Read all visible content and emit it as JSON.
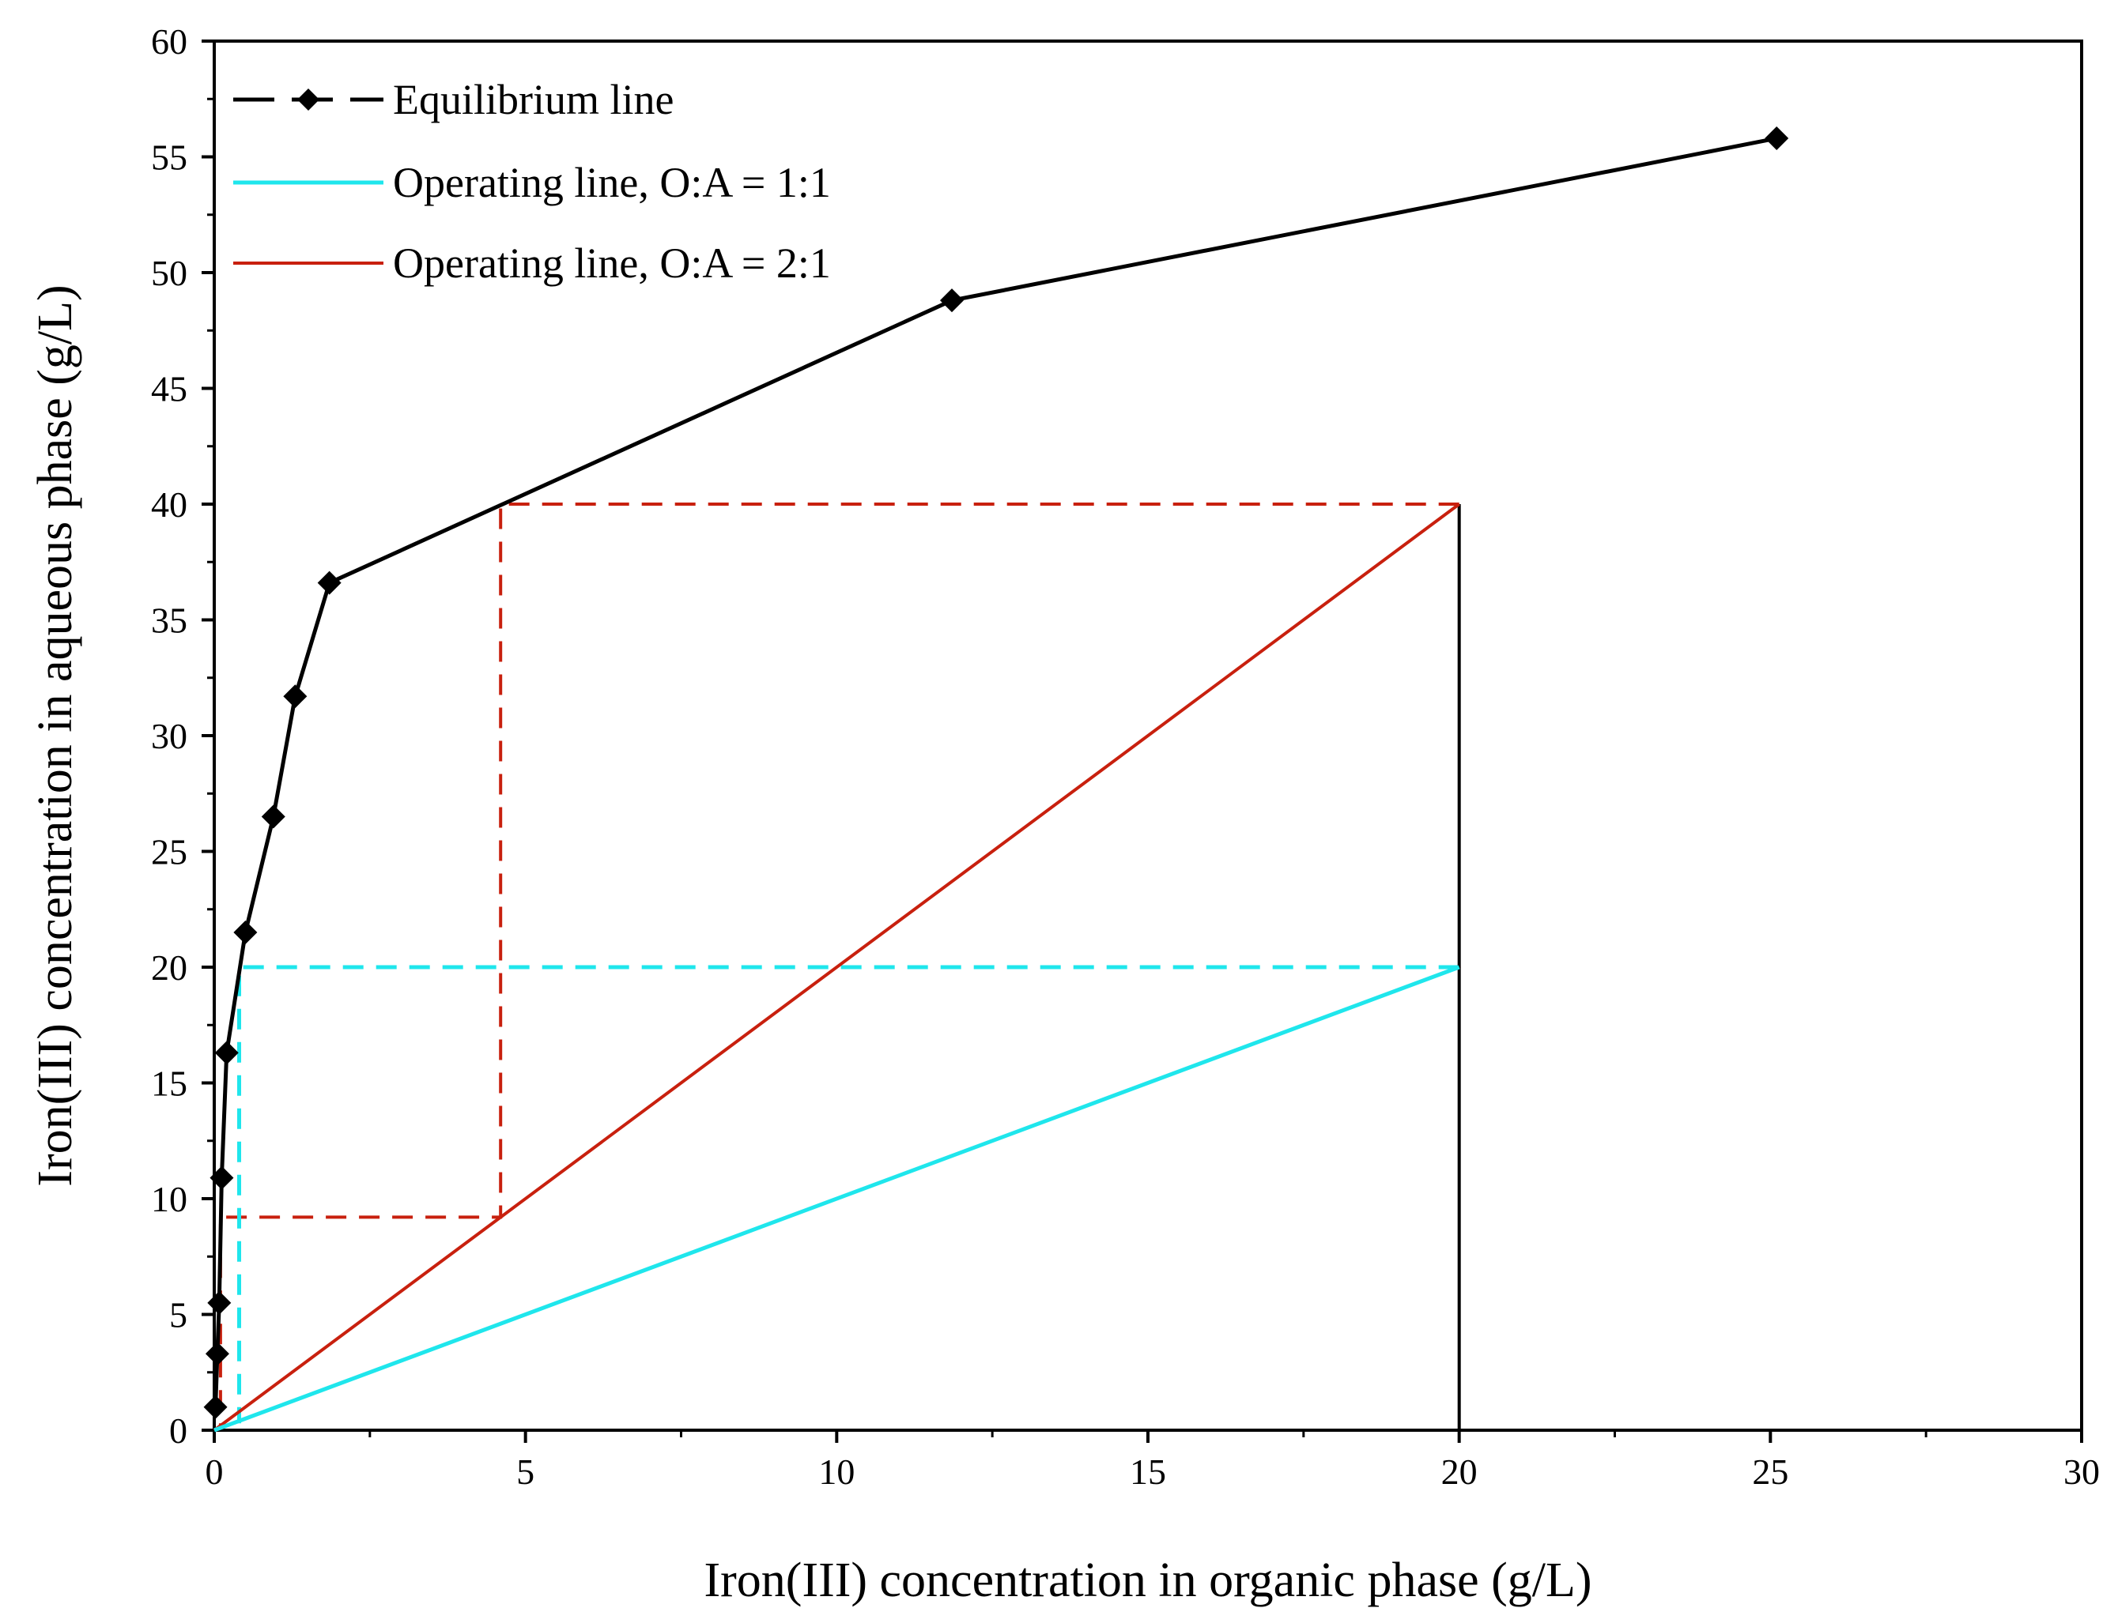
{
  "chart_data": {
    "type": "line",
    "xlabel": "Iron(III) concentration in organic phase (g/L)",
    "ylabel": "Iron(III) concentration in aqueous phase (g/L)",
    "xlim": [
      0,
      30
    ],
    "ylim": [
      0,
      60
    ],
    "x_ticks": [
      "0",
      "5",
      "10",
      "15",
      "20",
      "25",
      "30"
    ],
    "y_ticks": [
      "0",
      "5",
      "10",
      "15",
      "20",
      "25",
      "30",
      "35",
      "40",
      "45",
      "50",
      "55",
      "60"
    ],
    "grid": false,
    "legend_position": "top-left",
    "series": [
      {
        "name": "Equilibrium line",
        "color": "#000000",
        "marker": "diamond",
        "points": [
          [
            0.02,
            1.0
          ],
          [
            0.05,
            3.3
          ],
          [
            0.08,
            5.5
          ],
          [
            0.12,
            10.9
          ],
          [
            0.2,
            16.3
          ],
          [
            0.5,
            21.5
          ],
          [
            0.95,
            26.5
          ],
          [
            1.3,
            31.7
          ],
          [
            1.85,
            36.6
          ],
          [
            11.85,
            48.8
          ],
          [
            25.1,
            55.8
          ]
        ]
      },
      {
        "name": "Operating line, O:A = 1:1",
        "color": "#1fe6ec",
        "points": [
          [
            0.0,
            0.0
          ],
          [
            20.0,
            20.0
          ]
        ]
      },
      {
        "name": "Operating line, O:A = 2:1",
        "color": "#c8200e",
        "points": [
          [
            0.0,
            0.0
          ],
          [
            20.0,
            40.0
          ]
        ]
      }
    ],
    "annotations": {
      "feed_line": {
        "color": "#000000",
        "points": [
          [
            20.0,
            0.0
          ],
          [
            20.0,
            40.0
          ]
        ]
      },
      "stage_steps_1to1": {
        "color": "#1fe6ec",
        "points": [
          [
            20.0,
            20.0
          ],
          [
            0.4,
            20.0
          ],
          [
            0.4,
            0.3
          ]
        ]
      },
      "stage_steps_2to1": {
        "color": "#c8200e",
        "points": [
          [
            20.0,
            40.0
          ],
          [
            4.6,
            40.0
          ],
          [
            4.6,
            9.2
          ],
          [
            0.1,
            9.2
          ],
          [
            0.1,
            0.2
          ]
        ]
      }
    }
  }
}
